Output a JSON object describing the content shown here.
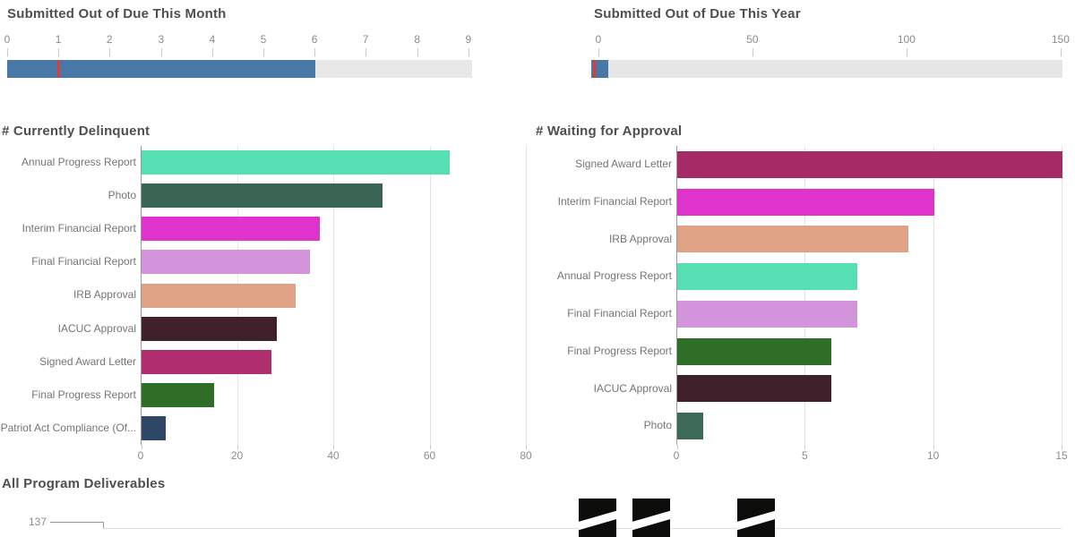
{
  "chart_data": [
    {
      "id": "bullet-month",
      "type": "bullet",
      "title": "Submitted Out of Due This Month",
      "value": 6,
      "target_marker": 1,
      "axis_ticks": [
        0,
        1,
        2,
        3,
        4,
        5,
        6,
        7,
        8,
        9
      ],
      "range": [
        0,
        9
      ],
      "tick_pos_pct": [
        0,
        11,
        22,
        33.1,
        44.1,
        55.1,
        66.1,
        77.1,
        88.2,
        99.2
      ],
      "fill_pct": 66.2,
      "marker_pct": 11,
      "colors": {
        "fill": "#4878a8",
        "marker": "#e03c32",
        "track": "#e8e8e8"
      }
    },
    {
      "id": "bullet-year",
      "type": "bullet",
      "title": "Submitted Out of Due This Year",
      "value": 6,
      "target_marker": 1,
      "axis_ticks": [
        0,
        50,
        100,
        150
      ],
      "range": [
        0,
        150
      ],
      "tick_pos_pct": [
        1.5,
        34.2,
        66.9,
        99.6
      ],
      "fill_pct": 3.6,
      "marker_pct": 0.5,
      "colors": {
        "fill": "#4878a8",
        "marker": "#e03c32",
        "track": "#e6e6e6"
      }
    },
    {
      "id": "currently-delinquent",
      "type": "bar",
      "orientation": "horizontal",
      "title": "# Currently Delinquent",
      "categories": [
        "Annual Progress Report",
        "Photo",
        "Interim Financial Report",
        "Final Financial Report",
        "IRB Approval",
        "IACUC Approval",
        "Signed Award Letter",
        "Final Progress Report",
        "Patriot Act Compliance (Of..."
      ],
      "values": [
        64,
        50,
        37,
        35,
        32,
        28,
        27,
        15,
        5
      ],
      "bar_colors": [
        "#55dfb2",
        "#3a6554",
        "#de33cc",
        "#d494dc",
        "#e0a284",
        "#3f202b",
        "#b02d6e",
        "#2f6e26",
        "#2f4767"
      ],
      "xlim": [
        0,
        80
      ],
      "xticks": [
        0,
        20,
        40,
        60,
        80
      ],
      "grid": true,
      "legend": false
    },
    {
      "id": "waiting-approval",
      "type": "bar",
      "orientation": "horizontal",
      "title": "# Waiting for Approval",
      "categories": [
        "Signed Award Letter",
        "Interim Financial Report",
        "IRB Approval",
        "Annual Progress Report",
        "Final Financial Report",
        "Final Progress Report",
        "IACUC Approval",
        "Photo"
      ],
      "values": [
        15,
        10,
        9,
        7,
        7,
        6,
        6,
        1
      ],
      "bar_colors": [
        "#a62a66",
        "#de33cc",
        "#e0a284",
        "#55dfb2",
        "#d494dc",
        "#2f6e26",
        "#3f202b",
        "#3d6a57"
      ],
      "xlim": [
        0,
        15
      ],
      "xticks": [
        0,
        5,
        10,
        15
      ],
      "grid": true,
      "legend": false
    },
    {
      "id": "all-program-deliverables",
      "type": "line",
      "title": "All Program Deliverables",
      "visible_ytick": "137",
      "striped_marks_count": 3
    }
  ]
}
